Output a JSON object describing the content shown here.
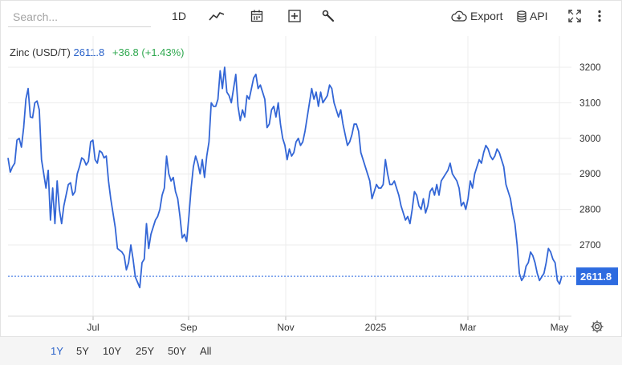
{
  "toolbar": {
    "search_placeholder": "Search...",
    "interval_label": "1D",
    "icons": [
      "line-chart-icon",
      "calendar-icon",
      "add-box-icon",
      "wrench-icon"
    ],
    "export_label": "Export",
    "api_label": "API",
    "icons_right": [
      "cloud-download-icon",
      "database-icon",
      "fullscreen-icon",
      "more-vertical-icon"
    ]
  },
  "legend": {
    "name": "Zinc (USD/T)",
    "price": "2611.8",
    "change": "+36.8 (+1.43%)"
  },
  "colors": {
    "line": "#3366d6",
    "up": "#2fa84f",
    "last_price_bg": "#2d6be0"
  },
  "chart_data": {
    "type": "line",
    "title": "",
    "xlabel": "",
    "ylabel": "",
    "x_ticks": [
      "Jul",
      "Sep",
      "Nov",
      "2025",
      "Mar",
      "May"
    ],
    "y_ticks": [
      "3200",
      "3100",
      "3000",
      "2900",
      "2800",
      "2700"
    ],
    "ylim": [
      2520,
      3250
    ],
    "grid": true,
    "last_price_label": "2611.8",
    "series": [
      {
        "values": [
          2945,
          2905,
          2920,
          2930,
          2995,
          3000,
          2975,
          3030,
          3110,
          3140,
          3060,
          3058,
          3100,
          3105,
          3080,
          2940,
          2900,
          2860,
          2910,
          2770,
          2860,
          2760,
          2880,
          2800,
          2760,
          2810,
          2840,
          2870,
          2875,
          2840,
          2850,
          2900,
          2920,
          2945,
          2940,
          2925,
          2935,
          2990,
          2995,
          2940,
          2930,
          2965,
          2960,
          2945,
          2950,
          2880,
          2830,
          2790,
          2750,
          2690,
          2685,
          2680,
          2670,
          2630,
          2650,
          2700,
          2660,
          2610,
          2595,
          2580,
          2650,
          2660,
          2760,
          2690,
          2730,
          2750,
          2770,
          2780,
          2800,
          2840,
          2860,
          2950,
          2900,
          2880,
          2890,
          2850,
          2830,
          2780,
          2720,
          2730,
          2710,
          2780,
          2860,
          2920,
          2950,
          2930,
          2900,
          2940,
          2890,
          2950,
          2990,
          3100,
          3090,
          3090,
          3110,
          3190,
          3140,
          3200,
          3130,
          3120,
          3100,
          3140,
          3180,
          3090,
          3050,
          3080,
          3060,
          3120,
          3110,
          3140,
          3170,
          3180,
          3140,
          3150,
          3130,
          3110,
          3030,
          3040,
          3080,
          3090,
          3060,
          3100,
          3040,
          3000,
          2980,
          2940,
          2970,
          2950,
          2960,
          2990,
          3000,
          2980,
          2990,
          3020,
          3060,
          3100,
          3140,
          3110,
          3130,
          3090,
          3130,
          3100,
          3110,
          3120,
          3150,
          3140,
          3100,
          3080,
          3060,
          3080,
          3040,
          3010,
          2980,
          2990,
          3010,
          3040,
          3040,
          3020,
          2960,
          2940,
          2920,
          2900,
          2880,
          2830,
          2850,
          2870,
          2860,
          2860,
          2870,
          2940,
          2900,
          2870,
          2870,
          2880,
          2860,
          2840,
          2810,
          2790,
          2770,
          2780,
          2760,
          2800,
          2850,
          2840,
          2810,
          2800,
          2830,
          2790,
          2810,
          2850,
          2860,
          2840,
          2870,
          2840,
          2880,
          2890,
          2900,
          2910,
          2930,
          2900,
          2890,
          2880,
          2860,
          2810,
          2820,
          2800,
          2830,
          2880,
          2860,
          2900,
          2920,
          2940,
          2930,
          2960,
          2980,
          2970,
          2950,
          2940,
          2950,
          2970,
          2960,
          2940,
          2920,
          2870,
          2850,
          2830,
          2790,
          2760,
          2700,
          2620,
          2600,
          2610,
          2640,
          2650,
          2680,
          2670,
          2650,
          2620,
          2600,
          2610,
          2620,
          2650,
          2690,
          2680,
          2660,
          2650,
          2600,
          2590,
          2611.8
        ]
      }
    ]
  },
  "range_tabs": {
    "items": [
      "1Y",
      "5Y",
      "10Y",
      "25Y",
      "50Y",
      "All"
    ],
    "active": "1Y"
  }
}
